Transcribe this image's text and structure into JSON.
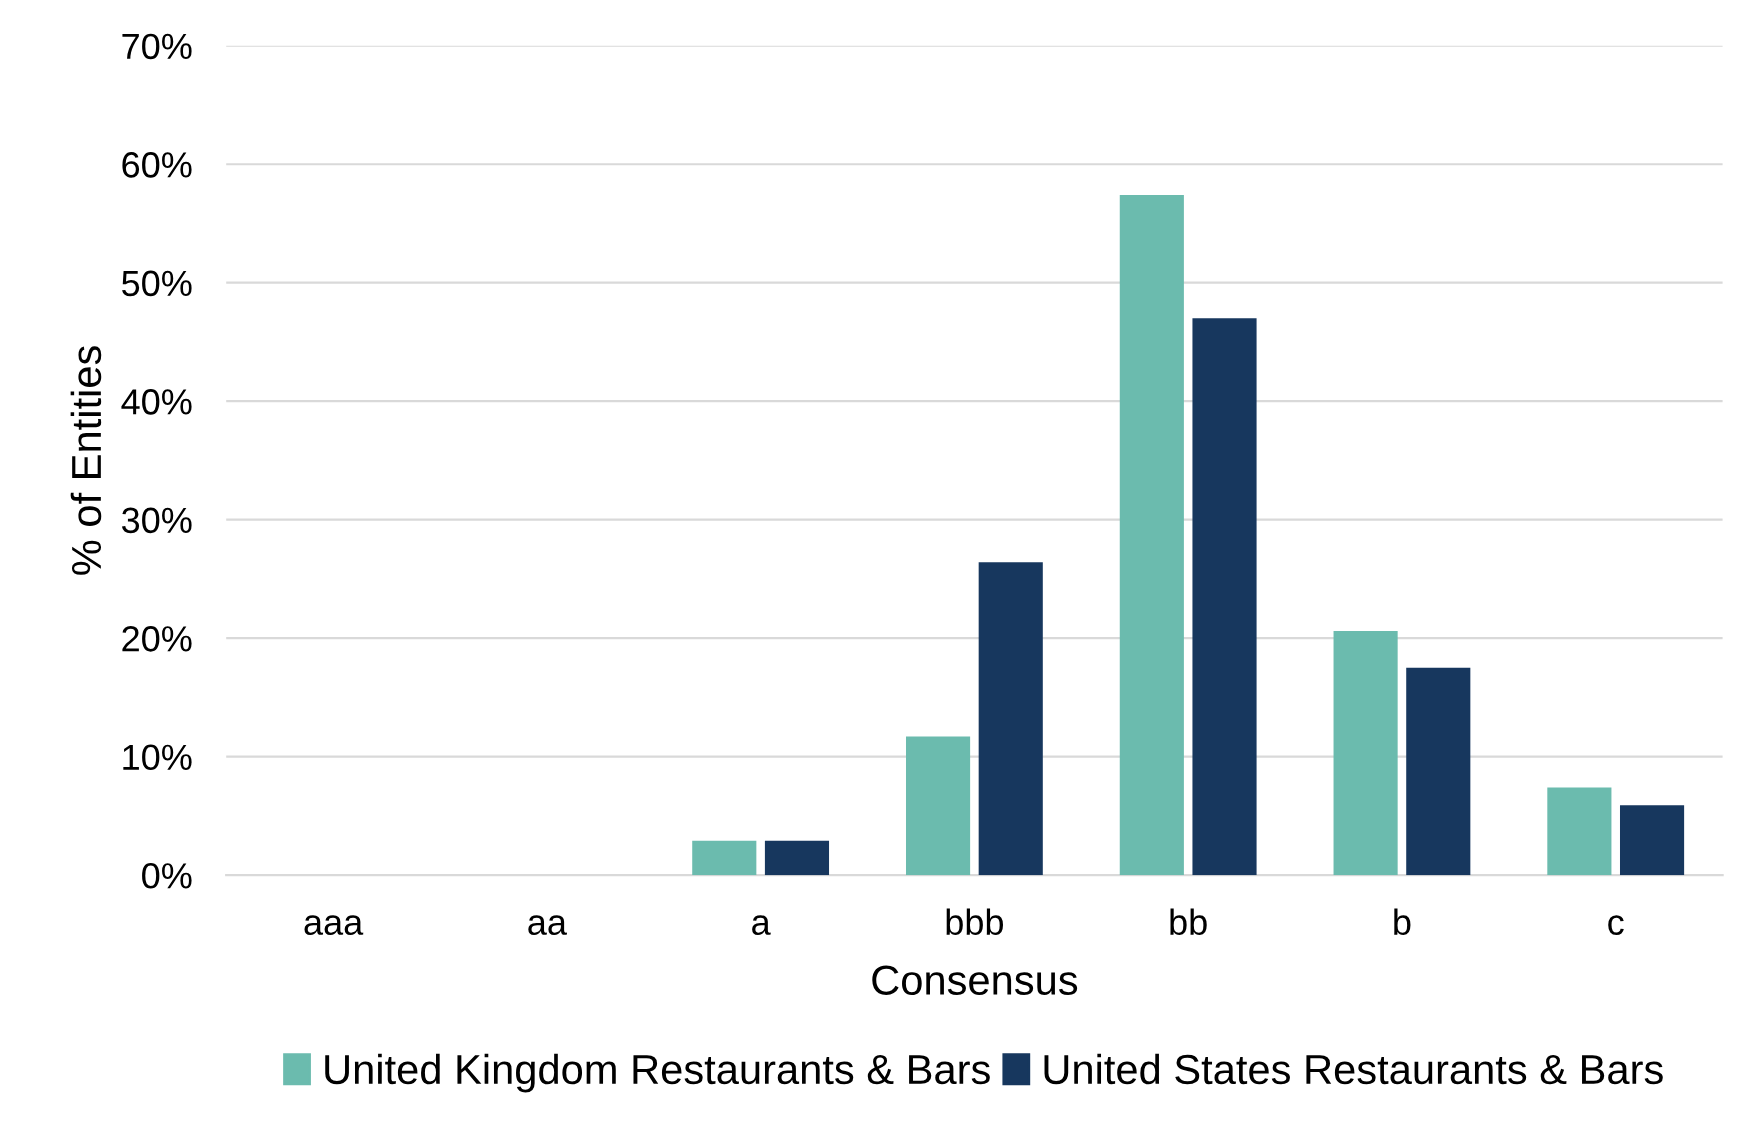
{
  "chart_data": {
    "type": "bar",
    "ylabel": "% of Entities",
    "xlabel": "Consensus",
    "categories": [
      "aaa",
      "aa",
      "a",
      "bbb",
      "bb",
      "b",
      "c"
    ],
    "series": [
      {
        "name": "United Kingdom Restaurants & Bars",
        "color": "#6bbbae",
        "values": [
          0,
          0,
          2.9,
          11.7,
          57.4,
          20.6,
          7.4
        ]
      },
      {
        "name": "United States Restaurants & Bars",
        "color": "#17375e",
        "values": [
          0,
          0,
          2.9,
          26.4,
          47.0,
          17.5,
          5.9
        ]
      }
    ],
    "ylim": [
      0,
      70
    ],
    "yticks": [
      {
        "value": 0,
        "label": "0%"
      },
      {
        "value": 10,
        "label": "10%"
      },
      {
        "value": 20,
        "label": "20%"
      },
      {
        "value": 30,
        "label": "30%"
      },
      {
        "value": 40,
        "label": "40%"
      },
      {
        "value": 50,
        "label": "50%"
      },
      {
        "value": 60,
        "label": "60%"
      },
      {
        "value": 70,
        "label": "70%"
      }
    ],
    "grid": "y",
    "legend": "bottom"
  }
}
